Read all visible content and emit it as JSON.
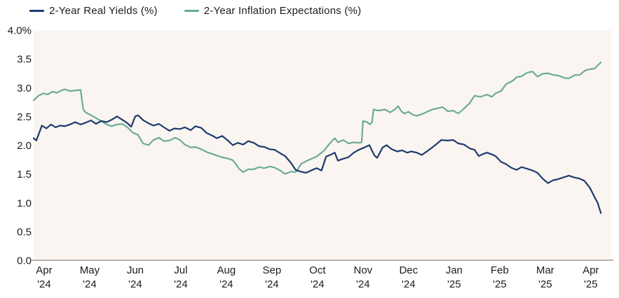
{
  "legend": [
    {
      "id": "real-yields",
      "label": "2-Year Real Yields (%)",
      "color": "#1d3a6e"
    },
    {
      "id": "inflation-expectations",
      "label": "2-Year Inflation Expectations (%)",
      "color": "#6cab97"
    }
  ],
  "chart_data": {
    "type": "line",
    "title": "",
    "plot_bg": "#faf5f1",
    "axis_line_color": "#9e9e9e",
    "x_axis": {
      "xlim": [
        -0.23,
        12.45
      ],
      "ticks": [
        {
          "pos": 0,
          "month": "Apr",
          "year": "'24"
        },
        {
          "pos": 1,
          "month": "May",
          "year": "'24"
        },
        {
          "pos": 2,
          "month": "Jun",
          "year": "'24"
        },
        {
          "pos": 3,
          "month": "Jul",
          "year": "'24"
        },
        {
          "pos": 4,
          "month": "Aug",
          "year": "'24"
        },
        {
          "pos": 5,
          "month": "Sep",
          "year": "'24"
        },
        {
          "pos": 6,
          "month": "Oct",
          "year": "'24"
        },
        {
          "pos": 7,
          "month": "Nov",
          "year": "'24"
        },
        {
          "pos": 8,
          "month": "Dec",
          "year": "'24"
        },
        {
          "pos": 9,
          "month": "Jan",
          "year": "'25"
        },
        {
          "pos": 10,
          "month": "Feb",
          "year": "'25"
        },
        {
          "pos": 11,
          "month": "Mar",
          "year": "'25"
        },
        {
          "pos": 12,
          "month": "Apr",
          "year": "'25"
        }
      ]
    },
    "y_axis": {
      "ylim": [
        0,
        4
      ],
      "ticks": [
        {
          "value": 4.0,
          "label": "4.0%"
        },
        {
          "value": 3.5,
          "label": "3.5"
        },
        {
          "value": 3.0,
          "label": "3.0"
        },
        {
          "value": 2.5,
          "label": "2.5"
        },
        {
          "value": 2.0,
          "label": "2.0"
        },
        {
          "value": 1.5,
          "label": "1.5"
        },
        {
          "value": 1.0,
          "label": "1.0"
        },
        {
          "value": 0.5,
          "label": "0.5"
        },
        {
          "value": 0.0,
          "label": "0.0"
        }
      ]
    },
    "series": [
      {
        "id": "real-yields",
        "name": "2-Year Real Yields (%)",
        "color": "#1d3a6e",
        "points": [
          [
            -0.23,
            2.12
          ],
          [
            -0.17,
            2.08
          ],
          [
            -0.05,
            2.34
          ],
          [
            0.05,
            2.29
          ],
          [
            0.15,
            2.36
          ],
          [
            0.25,
            2.31
          ],
          [
            0.35,
            2.34
          ],
          [
            0.45,
            2.33
          ],
          [
            0.57,
            2.36
          ],
          [
            0.68,
            2.4
          ],
          [
            0.8,
            2.36
          ],
          [
            0.91,
            2.39
          ],
          [
            1.03,
            2.43
          ],
          [
            1.14,
            2.37
          ],
          [
            1.25,
            2.42
          ],
          [
            1.37,
            2.4
          ],
          [
            1.48,
            2.44
          ],
          [
            1.6,
            2.5
          ],
          [
            1.72,
            2.44
          ],
          [
            1.83,
            2.38
          ],
          [
            1.91,
            2.32
          ],
          [
            2.0,
            2.5
          ],
          [
            2.06,
            2.52
          ],
          [
            2.18,
            2.43
          ],
          [
            2.29,
            2.38
          ],
          [
            2.4,
            2.34
          ],
          [
            2.52,
            2.37
          ],
          [
            2.63,
            2.31
          ],
          [
            2.75,
            2.25
          ],
          [
            2.86,
            2.29
          ],
          [
            2.98,
            2.28
          ],
          [
            3.09,
            2.31
          ],
          [
            3.22,
            2.26
          ],
          [
            3.32,
            2.33
          ],
          [
            3.45,
            2.3
          ],
          [
            3.57,
            2.21
          ],
          [
            3.68,
            2.17
          ],
          [
            3.79,
            2.12
          ],
          [
            3.91,
            2.16
          ],
          [
            4.02,
            2.09
          ],
          [
            4.14,
            2.0
          ],
          [
            4.25,
            2.04
          ],
          [
            4.37,
            2.01
          ],
          [
            4.48,
            2.07
          ],
          [
            4.6,
            2.04
          ],
          [
            4.72,
            1.98
          ],
          [
            4.83,
            1.97
          ],
          [
            4.95,
            1.93
          ],
          [
            5.06,
            1.92
          ],
          [
            5.18,
            1.86
          ],
          [
            5.29,
            1.81
          ],
          [
            5.42,
            1.69
          ],
          [
            5.52,
            1.57
          ],
          [
            5.63,
            1.54
          ],
          [
            5.75,
            1.52
          ],
          [
            5.86,
            1.56
          ],
          [
            5.98,
            1.6
          ],
          [
            6.09,
            1.56
          ],
          [
            6.19,
            1.8
          ],
          [
            6.28,
            1.83
          ],
          [
            6.38,
            1.87
          ],
          [
            6.45,
            1.73
          ],
          [
            6.55,
            1.76
          ],
          [
            6.68,
            1.79
          ],
          [
            6.8,
            1.87
          ],
          [
            6.91,
            1.92
          ],
          [
            7.03,
            1.96
          ],
          [
            7.14,
            2.0
          ],
          [
            7.25,
            1.82
          ],
          [
            7.31,
            1.78
          ],
          [
            7.43,
            1.96
          ],
          [
            7.52,
            2.0
          ],
          [
            7.63,
            1.93
          ],
          [
            7.75,
            1.89
          ],
          [
            7.86,
            1.91
          ],
          [
            7.97,
            1.87
          ],
          [
            8.06,
            1.89
          ],
          [
            8.18,
            1.87
          ],
          [
            8.29,
            1.83
          ],
          [
            8.4,
            1.89
          ],
          [
            8.52,
            1.96
          ],
          [
            8.63,
            2.03
          ],
          [
            8.72,
            2.09
          ],
          [
            8.85,
            2.08
          ],
          [
            8.98,
            2.09
          ],
          [
            9.09,
            2.03
          ],
          [
            9.22,
            2.01
          ],
          [
            9.35,
            1.94
          ],
          [
            9.45,
            1.92
          ],
          [
            9.54,
            1.81
          ],
          [
            9.65,
            1.85
          ],
          [
            9.72,
            1.87
          ],
          [
            9.83,
            1.84
          ],
          [
            9.91,
            1.81
          ],
          [
            10.03,
            1.71
          ],
          [
            10.14,
            1.67
          ],
          [
            10.25,
            1.61
          ],
          [
            10.37,
            1.57
          ],
          [
            10.48,
            1.62
          ],
          [
            10.6,
            1.59
          ],
          [
            10.72,
            1.56
          ],
          [
            10.83,
            1.52
          ],
          [
            10.94,
            1.42
          ],
          [
            11.06,
            1.34
          ],
          [
            11.17,
            1.39
          ],
          [
            11.29,
            1.41
          ],
          [
            11.4,
            1.44
          ],
          [
            11.52,
            1.47
          ],
          [
            11.63,
            1.44
          ],
          [
            11.75,
            1.42
          ],
          [
            11.86,
            1.38
          ],
          [
            11.98,
            1.26
          ],
          [
            12.08,
            1.1
          ],
          [
            12.15,
            1.0
          ],
          [
            12.22,
            0.82
          ]
        ]
      },
      {
        "id": "inflation-expectations",
        "name": "2-Year Inflation Expectations (%)",
        "color": "#6cab97",
        "points": [
          [
            -0.23,
            2.78
          ],
          [
            -0.12,
            2.86
          ],
          [
            -0.02,
            2.9
          ],
          [
            0.08,
            2.88
          ],
          [
            0.18,
            2.93
          ],
          [
            0.28,
            2.91
          ],
          [
            0.38,
            2.95
          ],
          [
            0.45,
            2.97
          ],
          [
            0.57,
            2.94
          ],
          [
            0.68,
            2.95
          ],
          [
            0.8,
            2.96
          ],
          [
            0.86,
            2.62
          ],
          [
            0.91,
            2.57
          ],
          [
            1.03,
            2.52
          ],
          [
            1.14,
            2.47
          ],
          [
            1.25,
            2.42
          ],
          [
            1.37,
            2.36
          ],
          [
            1.48,
            2.33
          ],
          [
            1.6,
            2.36
          ],
          [
            1.72,
            2.37
          ],
          [
            1.83,
            2.31
          ],
          [
            1.94,
            2.22
          ],
          [
            2.06,
            2.18
          ],
          [
            2.17,
            2.03
          ],
          [
            2.29,
            2.0
          ],
          [
            2.4,
            2.09
          ],
          [
            2.52,
            2.13
          ],
          [
            2.63,
            2.07
          ],
          [
            2.75,
            2.08
          ],
          [
            2.88,
            2.13
          ],
          [
            2.98,
            2.09
          ],
          [
            3.09,
            2.01
          ],
          [
            3.22,
            1.96
          ],
          [
            3.32,
            1.97
          ],
          [
            3.45,
            1.93
          ],
          [
            3.57,
            1.88
          ],
          [
            3.68,
            1.85
          ],
          [
            3.79,
            1.82
          ],
          [
            3.91,
            1.79
          ],
          [
            4.02,
            1.77
          ],
          [
            4.14,
            1.74
          ],
          [
            4.28,
            1.59
          ],
          [
            4.37,
            1.53
          ],
          [
            4.48,
            1.58
          ],
          [
            4.6,
            1.58
          ],
          [
            4.72,
            1.62
          ],
          [
            4.83,
            1.6
          ],
          [
            4.95,
            1.63
          ],
          [
            5.06,
            1.61
          ],
          [
            5.18,
            1.56
          ],
          [
            5.29,
            1.5
          ],
          [
            5.42,
            1.54
          ],
          [
            5.52,
            1.53
          ],
          [
            5.65,
            1.68
          ],
          [
            5.8,
            1.74
          ],
          [
            5.98,
            1.8
          ],
          [
            6.14,
            1.9
          ],
          [
            6.26,
            2.02
          ],
          [
            6.38,
            2.12
          ],
          [
            6.45,
            2.05
          ],
          [
            6.57,
            2.09
          ],
          [
            6.68,
            2.03
          ],
          [
            6.8,
            2.05
          ],
          [
            6.91,
            2.04
          ],
          [
            6.97,
            2.05
          ],
          [
            7.0,
            2.42
          ],
          [
            7.09,
            2.4
          ],
          [
            7.15,
            2.36
          ],
          [
            7.2,
            2.4
          ],
          [
            7.23,
            2.62
          ],
          [
            7.34,
            2.6
          ],
          [
            7.48,
            2.62
          ],
          [
            7.6,
            2.57
          ],
          [
            7.71,
            2.63
          ],
          [
            7.77,
            2.68
          ],
          [
            7.85,
            2.58
          ],
          [
            7.91,
            2.55
          ],
          [
            8.0,
            2.58
          ],
          [
            8.09,
            2.53
          ],
          [
            8.18,
            2.51
          ],
          [
            8.29,
            2.54
          ],
          [
            8.41,
            2.58
          ],
          [
            8.52,
            2.62
          ],
          [
            8.63,
            2.64
          ],
          [
            8.75,
            2.66
          ],
          [
            8.86,
            2.59
          ],
          [
            8.98,
            2.6
          ],
          [
            9.09,
            2.55
          ],
          [
            9.22,
            2.64
          ],
          [
            9.33,
            2.72
          ],
          [
            9.45,
            2.86
          ],
          [
            9.58,
            2.84
          ],
          [
            9.72,
            2.88
          ],
          [
            9.83,
            2.84
          ],
          [
            9.91,
            2.9
          ],
          [
            10.03,
            2.94
          ],
          [
            10.14,
            3.06
          ],
          [
            10.29,
            3.12
          ],
          [
            10.37,
            3.18
          ],
          [
            10.49,
            3.2
          ],
          [
            10.6,
            3.26
          ],
          [
            10.72,
            3.28
          ],
          [
            10.83,
            3.19
          ],
          [
            10.94,
            3.24
          ],
          [
            11.06,
            3.25
          ],
          [
            11.18,
            3.22
          ],
          [
            11.29,
            3.21
          ],
          [
            11.42,
            3.17
          ],
          [
            11.52,
            3.16
          ],
          [
            11.65,
            3.22
          ],
          [
            11.75,
            3.22
          ],
          [
            11.88,
            3.3
          ],
          [
            11.98,
            3.32
          ],
          [
            12.08,
            3.33
          ],
          [
            12.22,
            3.44
          ]
        ]
      }
    ]
  }
}
